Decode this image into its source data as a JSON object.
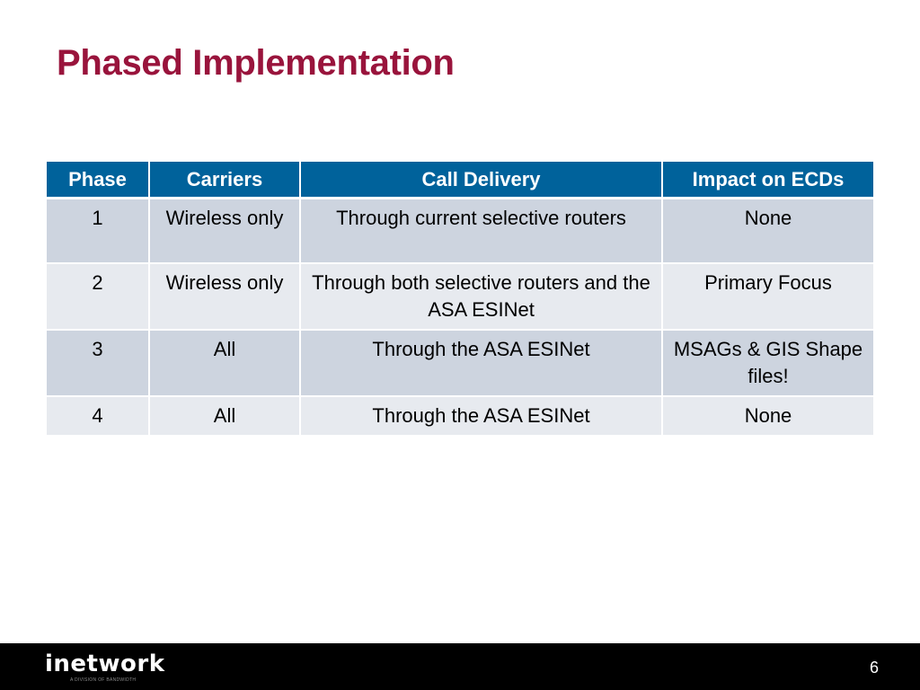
{
  "slide": {
    "title": "Phased Implementation",
    "page_number": "6"
  },
  "table": {
    "headers": [
      "Phase",
      "Carriers",
      "Call Delivery",
      "Impact on ECDs"
    ],
    "rows": [
      [
        "1",
        "Wireless only",
        "Through current selective routers",
        "None"
      ],
      [
        "2",
        "Wireless only",
        "Through both selective routers and the ASA ESINet",
        "Primary Focus"
      ],
      [
        "3",
        "All",
        "Through the ASA ESINet",
        "MSAGs & GIS Shape files!"
      ],
      [
        "4",
        "All",
        "Through the ASA ESINet",
        "None"
      ]
    ]
  },
  "footer": {
    "logo_text": "inetwork",
    "logo_tagline": "A DIVISION OF BANDWIDTH"
  },
  "colors": {
    "title": "#99143c",
    "header_bg": "#00629b",
    "row_dark": "#cdd4df",
    "row_light": "#e7eaef",
    "footer_bg": "#000000"
  }
}
